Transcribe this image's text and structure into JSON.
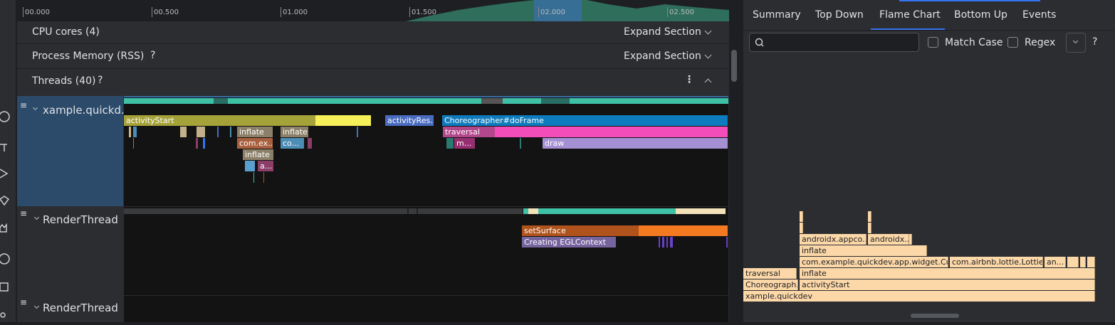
{
  "timeline": {
    "ticks": [
      "00.000",
      "00.500",
      "01.000",
      "01.500",
      "02.000",
      "02.500"
    ]
  },
  "sections": [
    {
      "title": "CPU cores (4)",
      "action": "Expand Section"
    },
    {
      "title": "Process Memory (RSS)",
      "help": "?",
      "action": "Expand Section"
    },
    {
      "title": "Threads (40)",
      "help": "?"
    }
  ],
  "threads": [
    {
      "name": "xample.quickd...",
      "slices": [
        "activityStart",
        "activityRes...",
        "Choreographer#doFrame",
        "traversal",
        "inflate",
        "inflate",
        "com.ex...",
        "co...",
        "m...",
        "draw",
        "inflate",
        "a..."
      ]
    },
    {
      "name": "RenderThread",
      "slices": [
        "setSurface",
        "Creating EGLContext"
      ]
    },
    {
      "name": "RenderThread"
    }
  ],
  "tabs": [
    "Summary",
    "Top Down",
    "Flame Chart",
    "Bottom Up",
    "Events"
  ],
  "search": {
    "match_case": "Match Case",
    "regex": "Regex",
    "help": "?"
  },
  "flame_chart": {
    "frames": [
      "xample.quickdev",
      "Choreograph...",
      "activityStart",
      "traversal",
      "inflate",
      "com.example.quickdev.app.widget.Cust...",
      "com.airbnb.lottie.Lottie...",
      "an...",
      "inflate",
      "androidx.appco...",
      "androidx..."
    ]
  }
}
